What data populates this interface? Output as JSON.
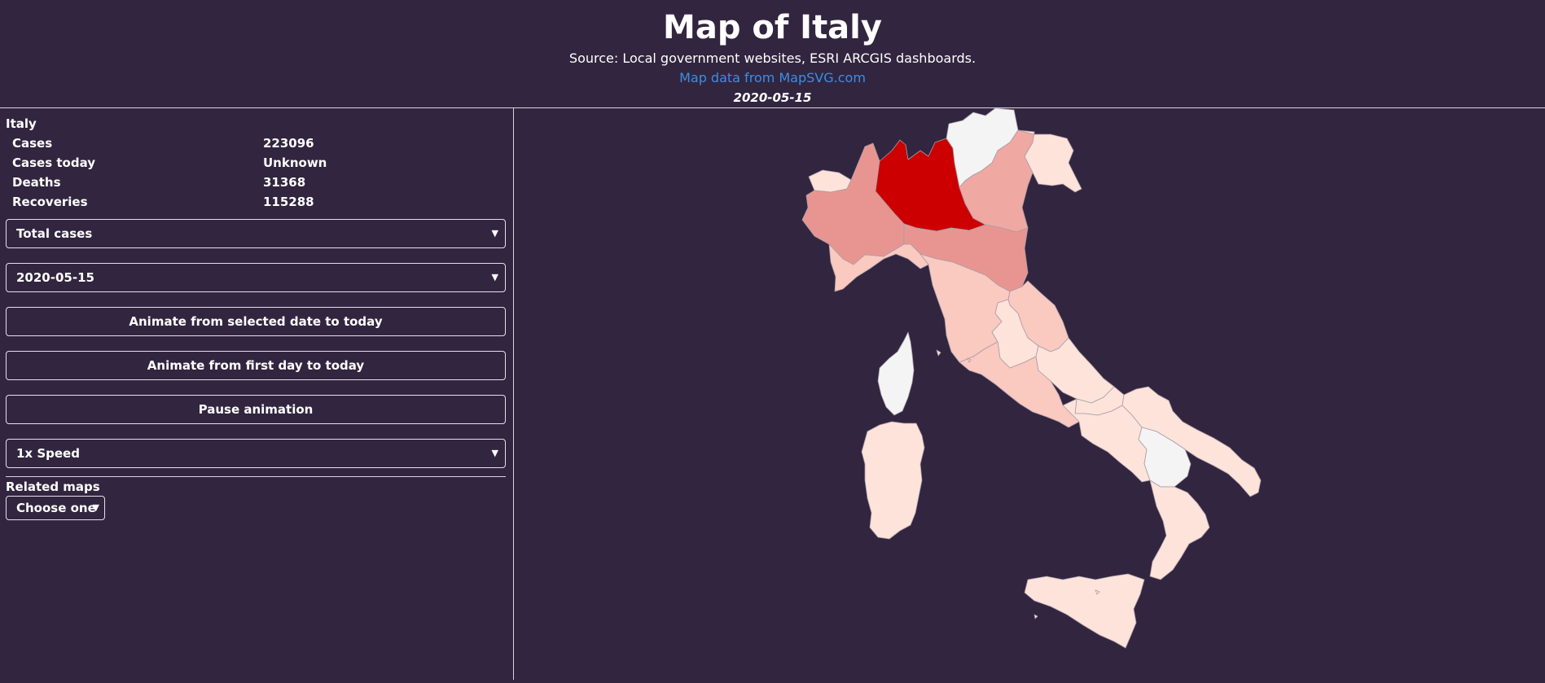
{
  "header": {
    "title": "Map of Italy",
    "source": "Source: Local government websites, ESRI ARCGIS dashboards.",
    "map_credit": "Map data from MapSVG.com",
    "date": "2020-05-15"
  },
  "sidebar": {
    "region_name": "Italy",
    "stats": [
      {
        "label": "Cases",
        "value": "223096"
      },
      {
        "label": "Cases today",
        "value": "Unknown"
      },
      {
        "label": "Deaths",
        "value": "31368"
      },
      {
        "label": "Recoveries",
        "value": "115288"
      }
    ],
    "metric_select": "Total cases",
    "date_select": "2020-05-15",
    "animate_selected_label": "Animate from selected date to today",
    "animate_first_label": "Animate from first day to today",
    "pause_label": "Pause animation",
    "speed_select": "1x Speed",
    "related_label": "Related maps",
    "related_select": "Choose one"
  },
  "colors": {
    "background": "#32253f",
    "link": "#3d8de5",
    "highest": "#cc0000",
    "high": "#e89591",
    "mid": "#f0a8a2",
    "low": "#fac9bf",
    "lowest": "#fde3da",
    "no_data": "#f4f4f4"
  },
  "map": {
    "regions": [
      {
        "name": "Lombardia",
        "level": "highest"
      },
      {
        "name": "Piemonte",
        "level": "high"
      },
      {
        "name": "Emilia-Romagna",
        "level": "high"
      },
      {
        "name": "Veneto",
        "level": "mid"
      },
      {
        "name": "Liguria",
        "level": "low"
      },
      {
        "name": "Friuli Venezia Giulia",
        "level": "lowest"
      },
      {
        "name": "Valle d'Aosta",
        "level": "lowest"
      },
      {
        "name": "Trentino-Alto Adige",
        "level": "no_data"
      },
      {
        "name": "Toscana",
        "level": "low"
      },
      {
        "name": "Marche",
        "level": "low"
      },
      {
        "name": "Umbria",
        "level": "lowest"
      },
      {
        "name": "Lazio",
        "level": "low"
      },
      {
        "name": "Abruzzo",
        "level": "lowest"
      },
      {
        "name": "Molise",
        "level": "lowest"
      },
      {
        "name": "Campania",
        "level": "lowest"
      },
      {
        "name": "Puglia",
        "level": "lowest"
      },
      {
        "name": "Basilicata",
        "level": "no_data"
      },
      {
        "name": "Calabria",
        "level": "lowest"
      },
      {
        "name": "Sicilia",
        "level": "lowest"
      },
      {
        "name": "Sardegna",
        "level": "lowest"
      },
      {
        "name": "Corsica",
        "level": "no_data"
      }
    ]
  }
}
